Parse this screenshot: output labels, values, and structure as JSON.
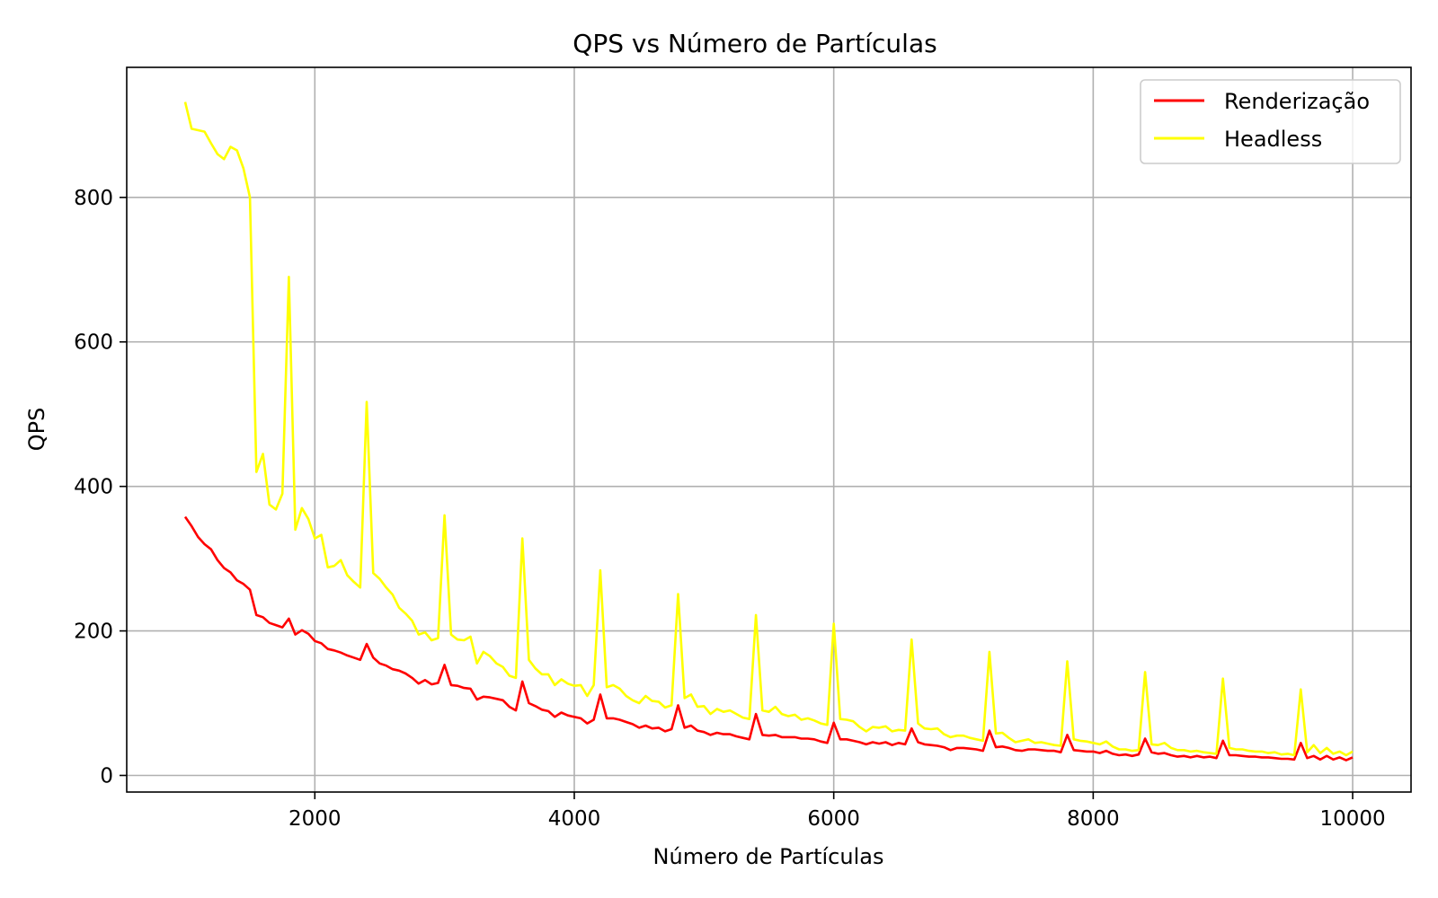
{
  "chart_data": {
    "type": "line",
    "title": "QPS vs Número de Partículas",
    "xlabel": "Número de Partículas",
    "ylabel": "QPS",
    "xlim": [
      550,
      10450
    ],
    "ylim": [
      -23,
      980
    ],
    "xticks": [
      2000,
      4000,
      6000,
      8000,
      10000
    ],
    "yticks": [
      0,
      200,
      400,
      600,
      800
    ],
    "grid": true,
    "legend_position": "top-right",
    "x": [
      1000,
      1050,
      1100,
      1150,
      1200,
      1250,
      1300,
      1350,
      1400,
      1450,
      1500,
      1550,
      1600,
      1650,
      1700,
      1750,
      1800,
      1850,
      1900,
      1950,
      2000,
      2050,
      2100,
      2150,
      2200,
      2250,
      2300,
      2350,
      2400,
      2450,
      2500,
      2550,
      2600,
      2650,
      2700,
      2750,
      2800,
      2850,
      2900,
      2950,
      3000,
      3050,
      3100,
      3150,
      3200,
      3250,
      3300,
      3350,
      3400,
      3450,
      3500,
      3550,
      3600,
      3650,
      3700,
      3750,
      3800,
      3850,
      3900,
      3950,
      4000,
      4050,
      4100,
      4150,
      4200,
      4250,
      4300,
      4350,
      4400,
      4450,
      4500,
      4550,
      4600,
      4650,
      4700,
      4750,
      4800,
      4850,
      4900,
      4950,
      5000,
      5050,
      5100,
      5150,
      5200,
      5250,
      5300,
      5350,
      5400,
      5450,
      5500,
      5550,
      5600,
      5650,
      5700,
      5750,
      5800,
      5850,
      5900,
      5950,
      6000,
      6050,
      6100,
      6150,
      6200,
      6250,
      6300,
      6350,
      6400,
      6450,
      6500,
      6550,
      6600,
      6650,
      6700,
      6750,
      6800,
      6850,
      6900,
      6950,
      7000,
      7050,
      7100,
      7150,
      7200,
      7250,
      7300,
      7350,
      7400,
      7450,
      7500,
      7550,
      7600,
      7650,
      7700,
      7750,
      7800,
      7850,
      7900,
      7950,
      8000,
      8050,
      8100,
      8150,
      8200,
      8250,
      8300,
      8350,
      8400,
      8450,
      8500,
      8550,
      8600,
      8650,
      8700,
      8750,
      8800,
      8850,
      8900,
      8950,
      9000,
      9050,
      9100,
      9150,
      9200,
      9250,
      9300,
      9350,
      9400,
      9450,
      9500,
      9550,
      9600,
      9650,
      9700,
      9750,
      9800,
      9850,
      9900,
      9950,
      10000
    ],
    "series": [
      {
        "name": "Renderização",
        "color": "#ff0000",
        "values": [
          358,
          345,
          330,
          320,
          313,
          298,
          287,
          281,
          270,
          265,
          257,
          222,
          219,
          211,
          208,
          205,
          217,
          195,
          201,
          196,
          186,
          183,
          175,
          173,
          170,
          166,
          163,
          160,
          182,
          163,
          155,
          152,
          147,
          145,
          141,
          135,
          127,
          132,
          126,
          128,
          153,
          125,
          124,
          121,
          120,
          105,
          109,
          108,
          106,
          104,
          95,
          90,
          130,
          100,
          96,
          91,
          89,
          81,
          87,
          83,
          81,
          79,
          72,
          77,
          112,
          79,
          79,
          77,
          74,
          71,
          66,
          69,
          65,
          66,
          61,
          64,
          97,
          66,
          69,
          62,
          60,
          56,
          59,
          57,
          57,
          54,
          52,
          50,
          85,
          56,
          55,
          56,
          53,
          53,
          53,
          51,
          51,
          50,
          47,
          45,
          73,
          50,
          50,
          48,
          46,
          43,
          46,
          44,
          46,
          42,
          45,
          43,
          65,
          46,
          43,
          42,
          41,
          39,
          35,
          38,
          38,
          37,
          36,
          34,
          62,
          39,
          40,
          38,
          35,
          34,
          36,
          36,
          35,
          34,
          34,
          32,
          56,
          35,
          34,
          33,
          33,
          31,
          34,
          30,
          28,
          29,
          27,
          29,
          51,
          32,
          30,
          31,
          28,
          26,
          27,
          25,
          27,
          25,
          26,
          24,
          48,
          28,
          28,
          27,
          26,
          26,
          25,
          25,
          24,
          23,
          23,
          22,
          45,
          24,
          27,
          22,
          27,
          22,
          25,
          21,
          25
        ],
        "linewidth": 2.6
      },
      {
        "name": "Headless",
        "color": "#ffff00",
        "values": [
          932,
          895,
          893,
          891,
          875,
          860,
          853,
          870,
          865,
          840,
          800,
          420,
          445,
          375,
          368,
          390,
          690,
          340,
          370,
          355,
          328,
          333,
          288,
          290,
          298,
          277,
          268,
          260,
          517,
          280,
          272,
          260,
          250,
          232,
          224,
          214,
          195,
          198,
          187,
          190,
          360,
          195,
          188,
          187,
          192,
          155,
          171,
          165,
          155,
          150,
          138,
          135,
          328,
          160,
          148,
          140,
          140,
          125,
          133,
          127,
          124,
          125,
          110,
          125,
          284,
          122,
          125,
          120,
          110,
          104,
          100,
          110,
          103,
          102,
          94,
          97,
          251,
          107,
          112,
          95,
          96,
          85,
          92,
          88,
          90,
          85,
          80,
          78,
          222,
          90,
          88,
          95,
          85,
          82,
          84,
          77,
          79,
          76,
          72,
          70,
          210,
          78,
          77,
          75,
          67,
          61,
          67,
          66,
          68,
          61,
          63,
          62,
          188,
          72,
          65,
          64,
          65,
          57,
          53,
          55,
          55,
          52,
          50,
          48,
          171,
          58,
          59,
          52,
          46,
          48,
          50,
          45,
          46,
          44,
          42,
          41,
          158,
          50,
          48,
          47,
          45,
          43,
          47,
          40,
          36,
          36,
          34,
          35,
          143,
          43,
          42,
          45,
          38,
          35,
          35,
          33,
          34,
          32,
          31,
          30,
          134,
          38,
          36,
          36,
          34,
          33,
          33,
          31,
          32,
          29,
          30,
          28,
          119,
          32,
          42,
          31,
          38,
          30,
          33,
          28,
          33
        ]
      }
    ]
  }
}
